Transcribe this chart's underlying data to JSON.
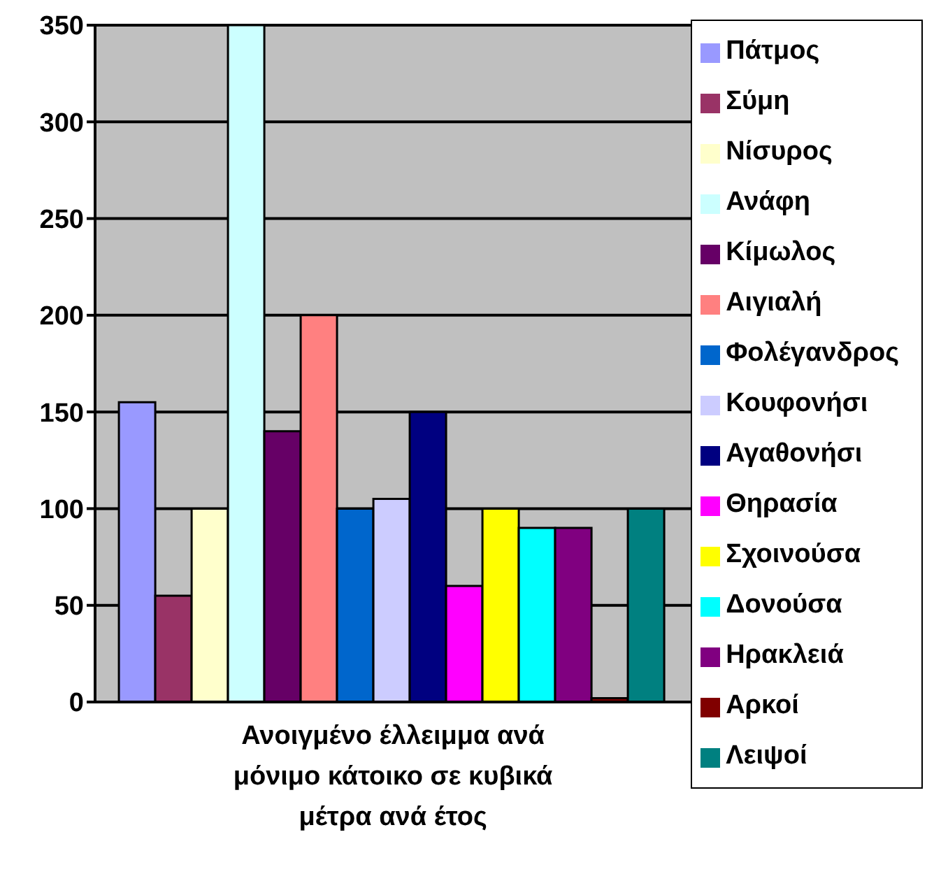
{
  "chart_data": {
    "type": "bar",
    "categories": [
      "Ανοιγμένο έλλειμμα ανά μόνιμο κάτοικο σε κυβικά μέτρα ανά έτος"
    ],
    "series": [
      {
        "name": "Πάτμος",
        "color": "#9999ff",
        "values": [
          155
        ]
      },
      {
        "name": "Σύμη",
        "color": "#993366",
        "values": [
          55
        ]
      },
      {
        "name": "Νίσυρος",
        "color": "#ffffcc",
        "values": [
          100
        ]
      },
      {
        "name": "Ανάφη",
        "color": "#ccffff",
        "values": [
          350
        ]
      },
      {
        "name": "Κίμωλος",
        "color": "#660066",
        "values": [
          140
        ]
      },
      {
        "name": "Αιγιαλή",
        "color": "#ff8080",
        "values": [
          200
        ]
      },
      {
        "name": "Φολέγανδρος",
        "color": "#0066cc",
        "values": [
          100
        ]
      },
      {
        "name": "Κουφονήσι",
        "color": "#ccccff",
        "values": [
          105
        ]
      },
      {
        "name": "Αγαθονήσι",
        "color": "#000080",
        "values": [
          150
        ]
      },
      {
        "name": "Θηρασία",
        "color": "#ff00ff",
        "values": [
          60
        ]
      },
      {
        "name": "Σχοινούσα",
        "color": "#ffff00",
        "values": [
          100
        ]
      },
      {
        "name": "Δονούσα",
        "color": "#00ffff",
        "values": [
          90
        ]
      },
      {
        "name": "Ηρακλειά",
        "color": "#800080",
        "values": [
          90
        ]
      },
      {
        "name": "Αρκοί",
        "color": "#800000",
        "values": [
          2
        ]
      },
      {
        "name": "Λειψοί",
        "color": "#008080",
        "values": [
          100
        ]
      }
    ],
    "ylim": [
      0,
      350
    ],
    "yticks": [
      0,
      50,
      100,
      150,
      200,
      250,
      300,
      350
    ],
    "grid": "y",
    "legend": "right"
  }
}
